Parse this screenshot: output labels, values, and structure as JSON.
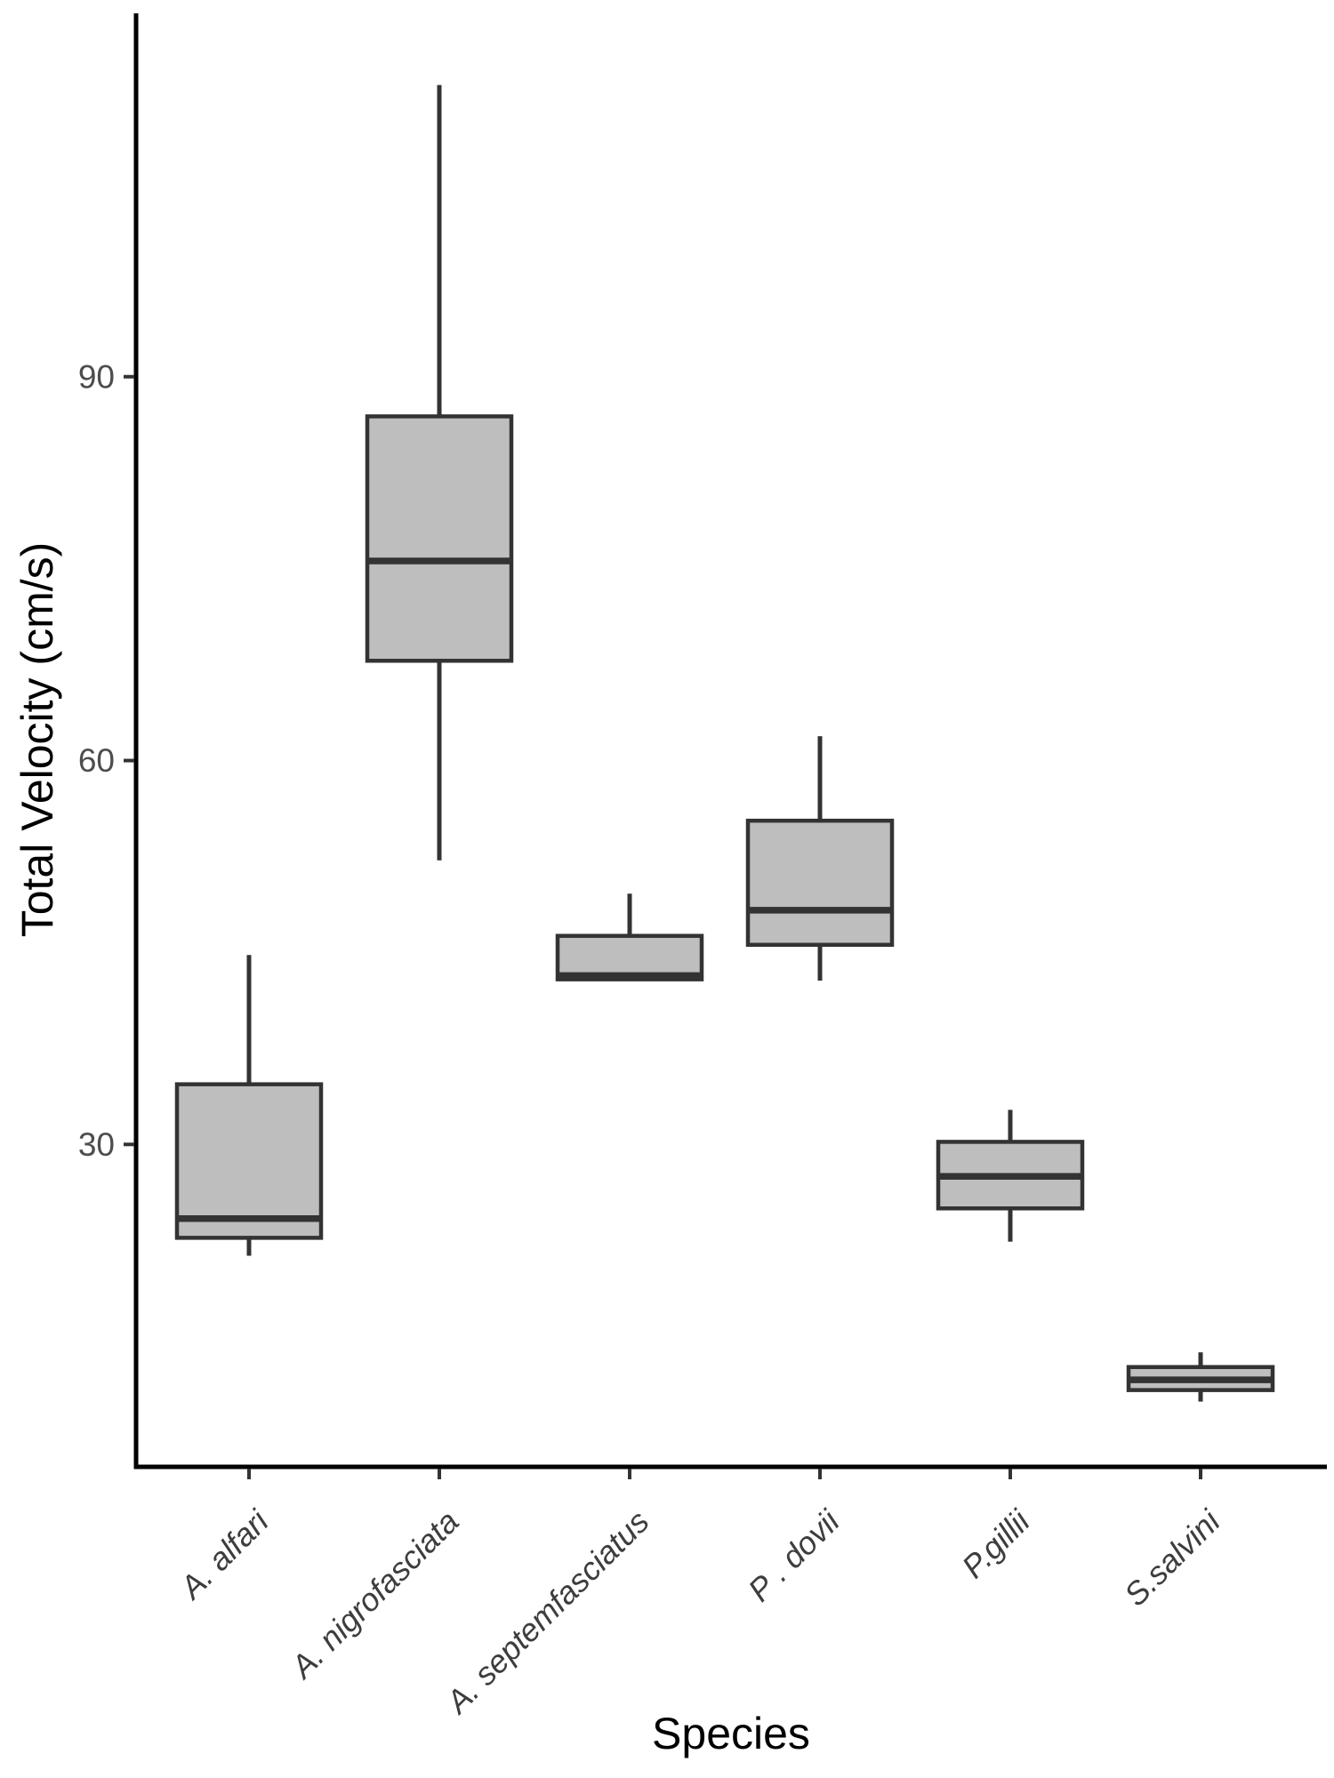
{
  "chart_data": {
    "type": "boxplot",
    "title": "",
    "xlabel": "Species",
    "ylabel": "Total Velocity (cm/s)",
    "categories": [
      "A. alfari",
      "A. nigrofasciata",
      "A. septemfasciatus",
      "P . dovii",
      "P.gillii",
      "S.salvini"
    ],
    "series": [
      {
        "name": "A. alfari",
        "whisker_low": 21.3,
        "q1": 22.7,
        "median": 24.2,
        "q3": 34.7,
        "whisker_high": 44.8
      },
      {
        "name": "A. nigrofasciata",
        "whisker_low": 52.2,
        "q1": 67.8,
        "median": 75.6,
        "q3": 86.9,
        "whisker_high": 112.8
      },
      {
        "name": "A. septemfasciatus",
        "whisker_low": 42.9,
        "q1": 42.9,
        "median": 43.2,
        "q3": 46.3,
        "whisker_high": 49.6
      },
      {
        "name": "P . dovii",
        "whisker_low": 42.8,
        "q1": 45.6,
        "median": 48.3,
        "q3": 55.3,
        "whisker_high": 61.9
      },
      {
        "name": "P.gillii",
        "whisker_low": 22.4,
        "q1": 25.0,
        "median": 27.5,
        "q3": 30.2,
        "whisker_high": 32.7
      },
      {
        "name": "S.salvini",
        "whisker_low": 9.9,
        "q1": 10.8,
        "median": 11.6,
        "q3": 12.6,
        "whisker_high": 13.75
      }
    ],
    "y_ticks": [
      30,
      60,
      90
    ],
    "ylim": [
      4.8,
      118.4
    ],
    "grid": "off",
    "legend": "none",
    "background": "#ffffff",
    "colors": {
      "box_fill": "#bebebe",
      "box_stroke": "#333333",
      "median_stroke": "#333333",
      "whisker_stroke": "#333333",
      "axis_line": "#000000",
      "tick_mark": "#333333",
      "tick_label": "#4d4d4d",
      "category_label": "#3d3d3d",
      "axis_title": "#000000"
    }
  }
}
